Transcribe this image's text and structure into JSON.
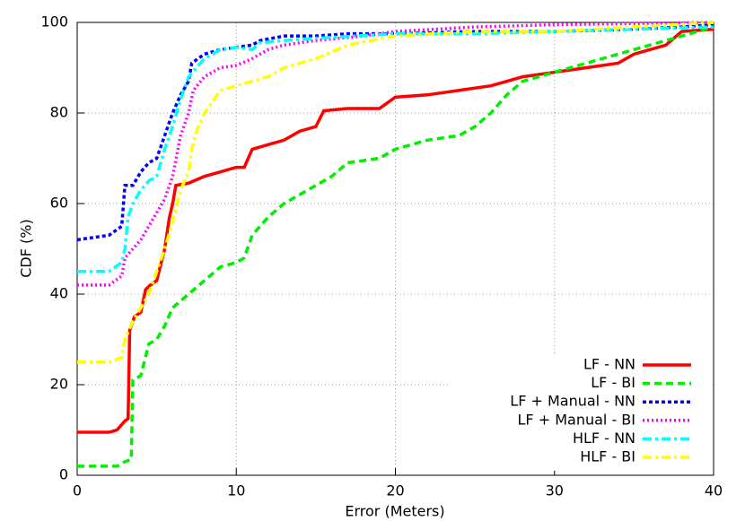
{
  "chart_data": {
    "type": "line",
    "x_label": "Error (Meters)",
    "y_label": "CDF (%)",
    "xlim": [
      0,
      40
    ],
    "ylim": [
      0,
      100
    ],
    "xticks": [
      0,
      10,
      20,
      30,
      40
    ],
    "yticks": [
      0,
      20,
      40,
      60,
      80,
      100
    ],
    "grid": true,
    "legend": "bottom-right",
    "series": [
      {
        "name": "LF - NN",
        "color": "#ff0000",
        "x": [
          0,
          2,
          2.5,
          3,
          3.2,
          3.3,
          3.6,
          4,
          4.3,
          4.6,
          5,
          5.5,
          5.8,
          6,
          6.2,
          7,
          8,
          9,
          10,
          10.5,
          11,
          12,
          13,
          14,
          15,
          15.5,
          17,
          19,
          20,
          22,
          24,
          26,
          27,
          28,
          30,
          32,
          34,
          35,
          37,
          38,
          40
        ],
        "values": [
          9.5,
          9.5,
          10,
          12,
          12.5,
          32,
          35,
          36,
          41,
          42,
          43,
          50,
          57,
          60,
          64,
          64.5,
          66,
          67,
          68,
          68,
          72,
          73,
          74,
          76,
          77,
          80.5,
          81,
          81,
          83.5,
          84,
          85,
          86,
          87,
          88,
          89,
          90,
          91,
          93,
          95,
          98,
          98.5
        ]
      },
      {
        "name": "LF - BI",
        "color": "#00ee00",
        "x": [
          0,
          1,
          2.5,
          3,
          3.4,
          3.5,
          4,
          4.5,
          5,
          5.5,
          6,
          7,
          8,
          9,
          10,
          10.5,
          11,
          12,
          13,
          14,
          15,
          16,
          17,
          19,
          20,
          22,
          24,
          25,
          26,
          27,
          28,
          29,
          30,
          31,
          33,
          35,
          37,
          38,
          39,
          40
        ],
        "values": [
          2,
          2,
          2,
          3,
          3.5,
          21,
          22,
          29,
          30,
          33,
          37,
          40,
          43,
          46,
          47,
          48,
          53,
          57,
          60,
          62,
          64,
          66,
          69,
          70,
          72,
          74,
          75,
          77,
          80,
          84,
          87,
          88,
          89,
          90,
          92,
          94,
          96,
          97,
          98,
          99
        ]
      },
      {
        "name": "LF + Manual - NN",
        "color": "#0000ff",
        "x": [
          0,
          2,
          2.8,
          3,
          3.5,
          4,
          4.5,
          5,
          5.5,
          6,
          6.5,
          7,
          7.2,
          8,
          9,
          10,
          11,
          11.5,
          13,
          15,
          17,
          20,
          25,
          30,
          35,
          38,
          40
        ],
        "values": [
          52,
          53,
          55,
          64,
          64,
          67,
          69,
          70,
          75,
          80,
          84,
          87,
          91,
          93,
          94,
          94.5,
          95,
          96,
          97,
          97,
          97.5,
          97.5,
          98,
          98,
          98.5,
          99,
          99.5
        ]
      },
      {
        "name": "LF + Manual - BI",
        "color": "#ff00ff",
        "x": [
          0,
          2,
          2.8,
          3,
          3.5,
          4,
          4.5,
          5,
          5.5,
          6,
          6.5,
          7,
          7.3,
          8,
          9,
          10,
          11,
          12,
          13,
          15,
          18,
          20,
          25,
          30,
          40
        ],
        "values": [
          42,
          42,
          44,
          48,
          50,
          52,
          55,
          58,
          61,
          66,
          75,
          80,
          85,
          88,
          90,
          90.5,
          92,
          94,
          95,
          96,
          97,
          98,
          99,
          99.5,
          100
        ]
      },
      {
        "name": "HLF - NN",
        "color": "#00ffff",
        "x": [
          0,
          2,
          2.8,
          3,
          3.2,
          3.5,
          4,
          4.5,
          5,
          5.5,
          6,
          6.5,
          7,
          8,
          9,
          10,
          11,
          11.5,
          13,
          15,
          20,
          25,
          30,
          35,
          40
        ],
        "values": [
          45,
          45,
          47,
          50,
          57,
          60,
          63,
          65,
          66,
          72,
          77,
          83,
          88,
          92,
          94,
          94.5,
          94,
          95.5,
          96,
          96.5,
          97.5,
          97.5,
          98,
          98.5,
          99
        ]
      },
      {
        "name": "HLF - BI",
        "color": "#ffff00",
        "x": [
          0,
          1,
          2,
          2.8,
          3,
          3.5,
          4,
          4.5,
          5,
          5.5,
          6,
          6.5,
          7,
          7.2,
          7.5,
          8,
          9,
          10,
          11,
          12,
          13,
          15,
          17,
          20,
          25,
          30,
          35,
          40
        ],
        "values": [
          25,
          25,
          25,
          26,
          30,
          34,
          37,
          40,
          45,
          50,
          56,
          63,
          67,
          72,
          76,
          80,
          85,
          86,
          87,
          88,
          90,
          92,
          95,
          97,
          98,
          98,
          99,
          100
        ]
      }
    ]
  }
}
